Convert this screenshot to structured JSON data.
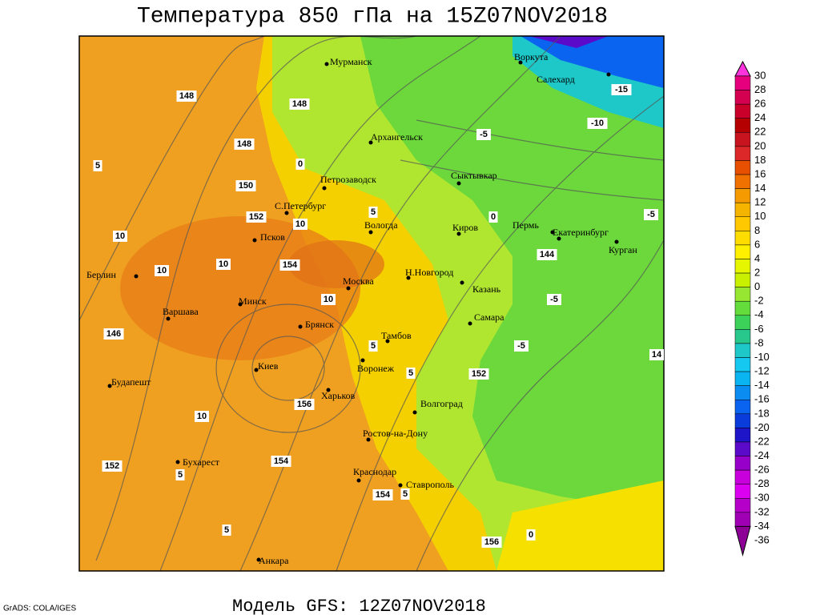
{
  "header": {
    "title": "Температура 850 гПа на 15Z07NOV2018"
  },
  "footer": {
    "model": "Модель GFS: 12Z07NOV2018",
    "credit": "GrADS: COLA/IGES"
  },
  "colorbar": {
    "levels": [
      30,
      28,
      26,
      24,
      22,
      20,
      18,
      16,
      14,
      12,
      10,
      8,
      6,
      4,
      2,
      0,
      -2,
      -4,
      -6,
      -8,
      -10,
      -12,
      -14,
      -16,
      -18,
      -20,
      -22,
      -24,
      -26,
      -28,
      -30,
      -32,
      -34,
      -36
    ],
    "colors": [
      "#ff33dd",
      "#e6007e",
      "#d40050",
      "#c8002a",
      "#b40000",
      "#c8141e",
      "#dc2828",
      "#e65000",
      "#f07000",
      "#f59a00",
      "#f5b400",
      "#ffc800",
      "#ffdc00",
      "#fff000",
      "#e6f500",
      "#c8f000",
      "#96e632",
      "#64dc3c",
      "#3cd25a",
      "#28c88c",
      "#1ec8c8",
      "#14c8f0",
      "#0ab4f0",
      "#0a8cf0",
      "#0a64f0",
      "#0a3cdc",
      "#1e14c8",
      "#5a0ac8",
      "#9600c8",
      "#c800dc",
      "#dc00f0",
      "#b400c8",
      "#a000b4",
      "#8c0096"
    ]
  },
  "cities": [
    "Мурманск",
    "Воркута",
    "Салехард",
    "Архангельск",
    "Петрозаводск",
    "Сыктывкар",
    "С.Петербург",
    "Вологда",
    "Киров",
    "Пермь",
    "Екатеринбург",
    "Курган",
    "Псков",
    "Москва",
    "Н.Новгород",
    "Казань",
    "Берлин",
    "Минск",
    "Варшава",
    "Брянск",
    "Тамбов",
    "Самара",
    "Воронеж",
    "Киев",
    "Харьков",
    "Волгоград",
    "Будапешт",
    "Ростов-на-Дону",
    "Бухарест",
    "Краснодар",
    "Ставрополь",
    "Анкара"
  ],
  "contour_labels": [
    148,
    148,
    148,
    150,
    152,
    154,
    146,
    152,
    154,
    156,
    154,
    156,
    152,
    144,
    -15,
    -10,
    -5,
    -5,
    -5,
    -5,
    0,
    0,
    0,
    5,
    5,
    5,
    5,
    5,
    5,
    5,
    10,
    10,
    10,
    10,
    10,
    10,
    14
  ]
}
